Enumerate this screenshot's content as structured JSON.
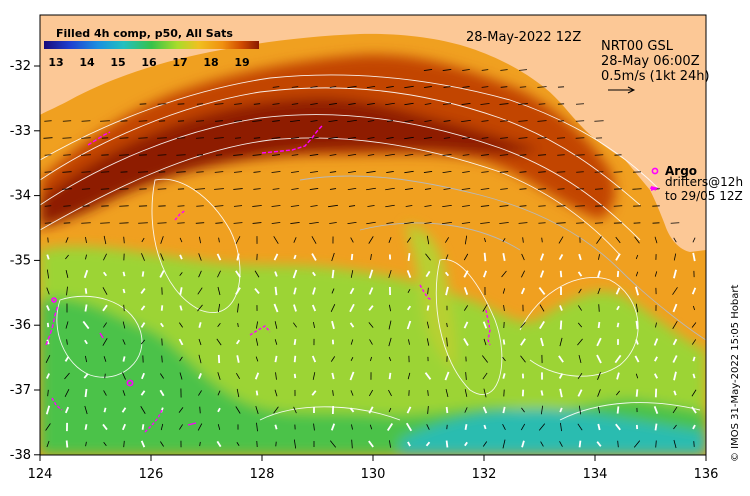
{
  "legend": {
    "title": "Filled 4h comp, p50, All Sats",
    "ticks": [
      "13",
      "14",
      "15",
      "16",
      "17",
      "18",
      "19"
    ],
    "colors": [
      "#1a0a7a",
      "#1f3fd0",
      "#1c8fe0",
      "#23c0c0",
      "#37c24a",
      "#a8dc2a",
      "#f0c020",
      "#f09010",
      "#d04a00",
      "#8a1a00"
    ]
  },
  "header": {
    "date": "28-May-2022 12Z",
    "product": "NRT00 GSL",
    "current_time": "28-May 06:00Z",
    "scale_label": "0.5m/s (1kt 24h)"
  },
  "annotations": {
    "argo_label": "Argo",
    "drifters_label": "drifters@12h",
    "drifters_to": "to 29/05 12Z"
  },
  "credit": "© IMOS 31-May-2022 15:05 Hobart",
  "axes": {
    "x_ticks": [
      "124",
      "126",
      "128",
      "130",
      "132",
      "134",
      "136"
    ],
    "y_ticks": [
      "-32",
      "-33",
      "-34",
      "-35",
      "-36",
      "-37",
      "-38"
    ]
  },
  "colors": {
    "land": "#fcc896",
    "argo": "#ff00ff",
    "contour": "#ffffff",
    "arrow_dark": "#000000",
    "arrow_light": "#ffffff"
  }
}
